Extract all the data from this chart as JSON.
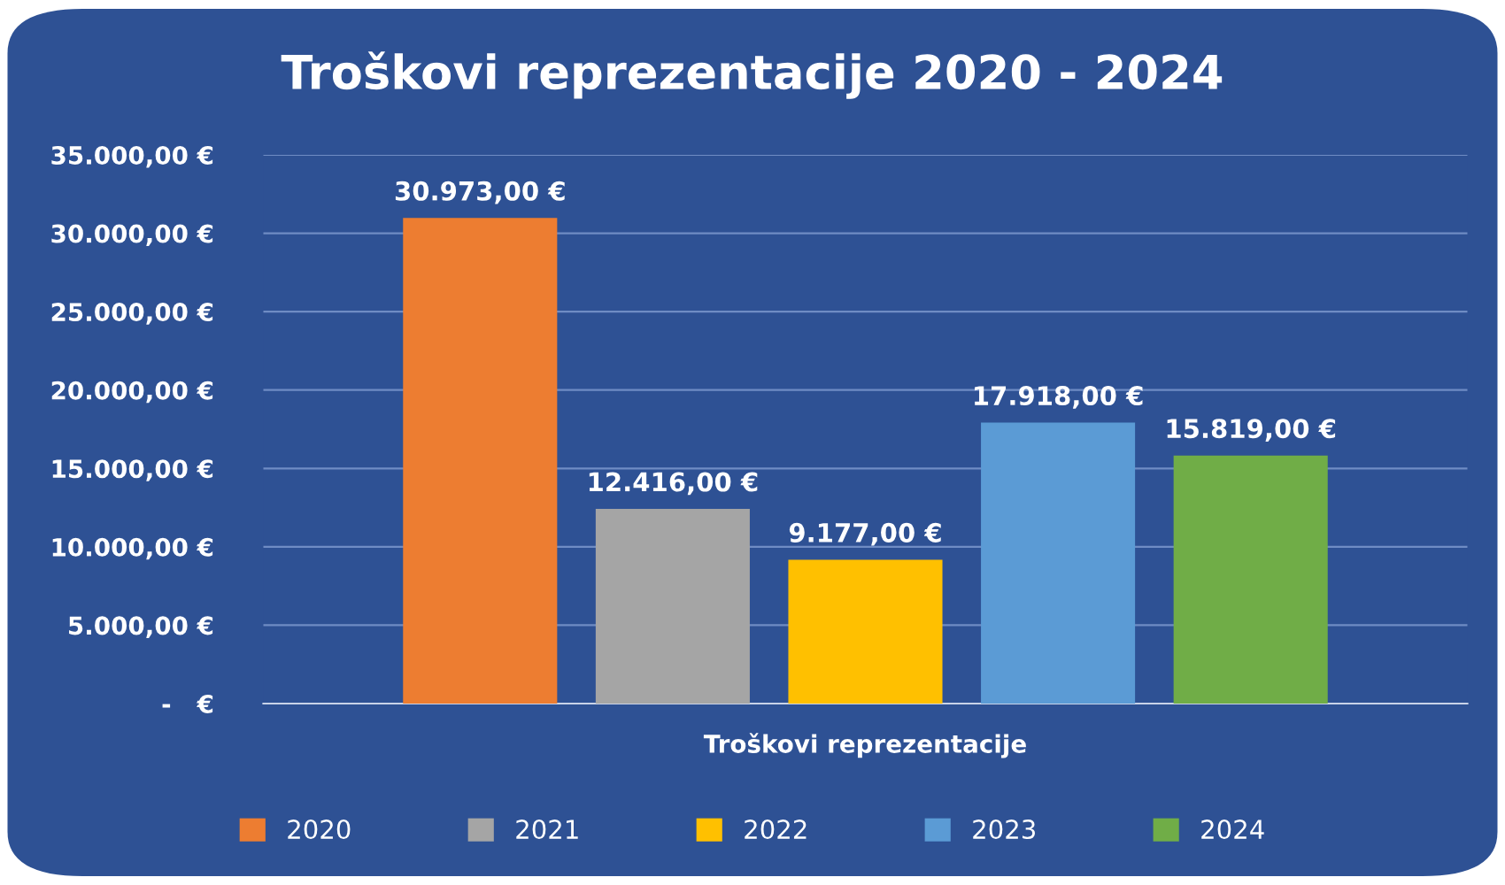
{
  "chart_data": {
    "type": "bar",
    "title": "Troškovi reprezentacije 2020 - 2024",
    "categories": [
      "Troškovi reprezentacije"
    ],
    "series": [
      {
        "name": "2020",
        "color": "#ed7d31",
        "values": [
          30973
        ],
        "value_labels": [
          "30.973,00 €"
        ]
      },
      {
        "name": "2021",
        "color": "#a5a5a5",
        "values": [
          12416
        ],
        "value_labels": [
          "12.416,00 €"
        ]
      },
      {
        "name": "2022",
        "color": "#ffc000",
        "values": [
          9177
        ],
        "value_labels": [
          "9.177,00 €"
        ]
      },
      {
        "name": "2023",
        "color": "#5b9bd5",
        "values": [
          17918
        ],
        "value_labels": [
          "17.918,00 €"
        ]
      },
      {
        "name": "2024",
        "color": "#70ad47",
        "values": [
          15819
        ],
        "value_labels": [
          "15.819,00 €"
        ]
      }
    ],
    "ylim": [
      0,
      35000
    ],
    "yticks": [
      {
        "value": 0,
        "label": "-   €"
      },
      {
        "value": 5000,
        "label": "5.000,00 €"
      },
      {
        "value": 10000,
        "label": "10.000,00 €"
      },
      {
        "value": 15000,
        "label": "15.000,00 €"
      },
      {
        "value": 20000,
        "label": "20.000,00 €"
      },
      {
        "value": 25000,
        "label": "25.000,00 €"
      },
      {
        "value": 30000,
        "label": "30.000,00 €"
      },
      {
        "value": 35000,
        "label": "35.000,00 €"
      }
    ],
    "grid": "y",
    "legend": "bottom"
  }
}
